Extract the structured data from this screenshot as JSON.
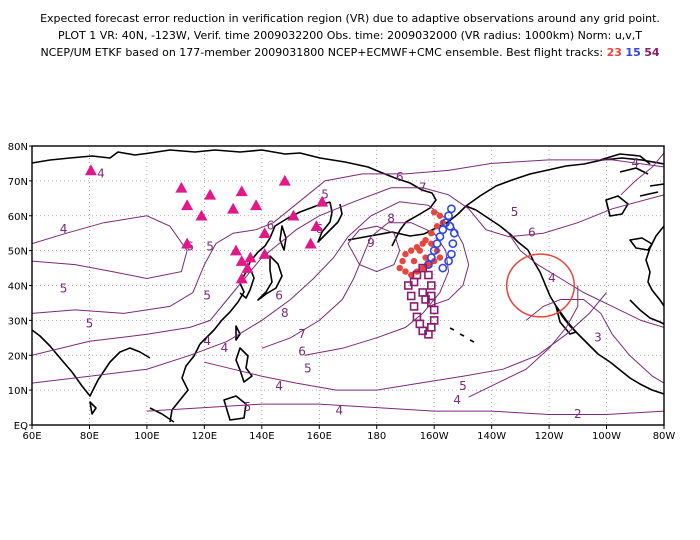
{
  "title": {
    "line1": "Expected forecast error reduction in verification region (VR) due to adaptive observations around any grid point.",
    "line2": "PLOT 1 VR: 40N, -123W, Verif. time 2009032200 Obs. time: 2009032000 (VR radius: 1000km) Norm: u,v,T",
    "line3_prefix": "NCEP/UM ETKF based on 177-member 2009031800 NCEP+ECMWF+CMC ensemble. Best flight tracks:",
    "track_red": "23",
    "track_blue": "15",
    "track_purple": "54"
  },
  "colors": {
    "contour": "#7a2a78",
    "track_red": "#e8453c",
    "track_blue": "#2f49e0",
    "track_purple": "#8a1d6e",
    "triangles": "#e0188a",
    "vr_circle": "#e8453c"
  },
  "map": {
    "lon_ticks": [
      "60E",
      "80E",
      "100E",
      "120E",
      "140E",
      "160E",
      "180",
      "160W",
      "140W",
      "120W",
      "100W",
      "80W"
    ],
    "lat_ticks": [
      "EQ",
      "10N",
      "20N",
      "30N",
      "40N",
      "50N",
      "60N",
      "70N",
      "80N"
    ],
    "lon_range": [
      60,
      280
    ],
    "lat_range": [
      0,
      80
    ],
    "gridlines": "dotted",
    "verification_region": {
      "lat": 40,
      "lon": -123,
      "radius_km": 1000
    },
    "contour_labels": [
      {
        "text": "4",
        "lon": 71,
        "lat": 55
      },
      {
        "text": "5",
        "lon": 71,
        "lat": 38
      },
      {
        "text": "5",
        "lon": 80,
        "lat": 28
      },
      {
        "text": "4",
        "lon": 84,
        "lat": 71
      },
      {
        "text": "6",
        "lon": 115,
        "lat": 50
      },
      {
        "text": "5",
        "lon": 122,
        "lat": 50
      },
      {
        "text": "5",
        "lon": 121,
        "lat": 36
      },
      {
        "text": "4",
        "lon": 121,
        "lat": 23
      },
      {
        "text": "4",
        "lon": 127,
        "lat": 21
      },
      {
        "text": "6",
        "lon": 143,
        "lat": 56
      },
      {
        "text": "5",
        "lon": 162,
        "lat": 65
      },
      {
        "text": "6",
        "lon": 160,
        "lat": 55
      },
      {
        "text": "6",
        "lon": 188,
        "lat": 70
      },
      {
        "text": "7",
        "lon": 196,
        "lat": 67
      },
      {
        "text": "8",
        "lon": 185,
        "lat": 58
      },
      {
        "text": "9",
        "lon": 178,
        "lat": 51
      },
      {
        "text": "6",
        "lon": 146,
        "lat": 36
      },
      {
        "text": "8",
        "lon": 148,
        "lat": 31
      },
      {
        "text": "7",
        "lon": 154,
        "lat": 25
      },
      {
        "text": "6",
        "lon": 154,
        "lat": 20
      },
      {
        "text": "5",
        "lon": 156,
        "lat": 15
      },
      {
        "text": "4",
        "lon": 146,
        "lat": 10
      },
      {
        "text": "5",
        "lon": 135,
        "lat": 4
      },
      {
        "text": "4",
        "lon": 167,
        "lat": 3
      },
      {
        "text": "5",
        "lon": 210,
        "lat": 10
      },
      {
        "text": "4",
        "lon": 208,
        "lat": 6
      },
      {
        "text": "5",
        "lon": 228,
        "lat": 60
      },
      {
        "text": "6",
        "lon": 234,
        "lat": 54
      },
      {
        "text": "4",
        "lon": 241,
        "lat": 41
      },
      {
        "text": "4",
        "lon": 270,
        "lat": 74
      },
      {
        "text": "3",
        "lon": 257,
        "lat": 24
      },
      {
        "text": "2",
        "lon": 250,
        "lat": 2
      }
    ],
    "triangles": [
      [
        80.5,
        73
      ],
      [
        112,
        68
      ],
      [
        114,
        63
      ],
      [
        122,
        66
      ],
      [
        119,
        60
      ],
      [
        133,
        67
      ],
      [
        130,
        62
      ],
      [
        148,
        70
      ],
      [
        151,
        60
      ],
      [
        138,
        63
      ],
      [
        131,
        50
      ],
      [
        133,
        47
      ],
      [
        135,
        45
      ],
      [
        133,
        42
      ],
      [
        136,
        48
      ],
      [
        141,
        49
      ],
      [
        141,
        55
      ],
      [
        161,
        64
      ],
      [
        159,
        57
      ],
      [
        157,
        52
      ],
      [
        114,
        52
      ]
    ],
    "track_red_points": [
      [
        192,
        50
      ],
      [
        194,
        51
      ],
      [
        196,
        52
      ],
      [
        190,
        49
      ],
      [
        189,
        47
      ],
      [
        188,
        45
      ],
      [
        190,
        44
      ],
      [
        192,
        43
      ],
      [
        194,
        44
      ],
      [
        196,
        45
      ],
      [
        198,
        46
      ],
      [
        200,
        47
      ],
      [
        202,
        48
      ],
      [
        201,
        50
      ],
      [
        199,
        52
      ],
      [
        197,
        53
      ],
      [
        199,
        55
      ],
      [
        201,
        57
      ],
      [
        203,
        58
      ],
      [
        202,
        60
      ],
      [
        200,
        61
      ],
      [
        195,
        50
      ],
      [
        197,
        48
      ],
      [
        193,
        47
      ]
    ],
    "track_blue_points": [
      [
        198,
        46
      ],
      [
        199,
        48
      ],
      [
        200,
        50
      ],
      [
        201,
        52
      ],
      [
        202,
        54
      ],
      [
        203,
        56
      ],
      [
        204,
        58
      ],
      [
        205,
        60
      ],
      [
        206,
        62
      ],
      [
        205.5,
        57
      ],
      [
        207,
        55
      ],
      [
        206.5,
        52
      ],
      [
        206,
        49
      ],
      [
        205,
        47
      ],
      [
        203,
        45
      ]
    ],
    "track_purple_points": [
      [
        191,
        40
      ],
      [
        192,
        37
      ],
      [
        193,
        34
      ],
      [
        194,
        31
      ],
      [
        195,
        29
      ],
      [
        196,
        27
      ],
      [
        198,
        26
      ],
      [
        199,
        28
      ],
      [
        200,
        30
      ],
      [
        200,
        33
      ],
      [
        199,
        35
      ],
      [
        199,
        37
      ],
      [
        199,
        40
      ],
      [
        198,
        43
      ],
      [
        196,
        45
      ],
      [
        194,
        43
      ],
      [
        193,
        41
      ],
      [
        196,
        38
      ],
      [
        197,
        36
      ]
    ]
  }
}
